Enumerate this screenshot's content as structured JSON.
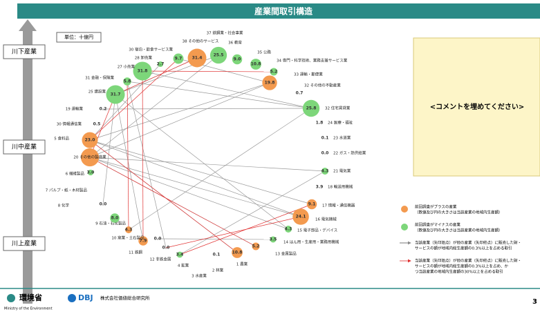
{
  "header": {
    "title": "産業間取引構造"
  },
  "unit": "単位：十億円",
  "side_labels": [
    "川下産業",
    "川中産業",
    "川上産業"
  ],
  "nodes": [
    {
      "label": "38 その他のサービス",
      "value": "25.5",
      "color": "#7dd67a"
    },
    {
      "label": "36 教育",
      "value": "9.0",
      "color": "#7dd67a"
    },
    {
      "label": "35 公務",
      "value": "10.8",
      "color": "#7dd67a"
    },
    {
      "label": "34 専門・科学技術、業務支援サービス業",
      "value": "5.2",
      "color": "#7dd67a"
    },
    {
      "label": "33 運輸・郵便業",
      "value": "19.8",
      "color": "#f39a4f"
    },
    {
      "label": "32 その他の不動産業",
      "value": "0.7"
    },
    {
      "label": "32 住宅賃貸業",
      "value": "25.8",
      "color": "#7dd67a"
    },
    {
      "label": "24 医療・福祉",
      "value": "1.8"
    },
    {
      "label": "23 水道業",
      "value": "0.1"
    },
    {
      "label": "22 ガス・熱供給業",
      "value": "0.0"
    },
    {
      "label": "21 電気業",
      "value": "4.3",
      "color": "#7dd67a"
    },
    {
      "label": "18 輸送用機械",
      "value": "3.9"
    },
    {
      "label": "17 情報・通信機器",
      "value": "9.1",
      "color": "#f39a4f"
    },
    {
      "label": "16 電気機械",
      "value": "24.1",
      "color": "#f39a4f"
    },
    {
      "label": "15 電子部品・デバイス",
      "value": "4.3",
      "color": "#7dd67a"
    },
    {
      "label": "14 はん用・生産用・業務用機械",
      "value": "3.5",
      "color": "#7dd67a"
    },
    {
      "label": "13 金属製品",
      "value": "5.2",
      "color": "#f39a4f"
    },
    {
      "label": "1 農業",
      "value": "10.8",
      "color": "#f39a4f"
    },
    {
      "label": "2 林業",
      "value": "0.1"
    },
    {
      "label": "3 水産業"
    },
    {
      "label": "4 鉱業",
      "value": "3.4",
      "color": "#7dd67a"
    },
    {
      "label": "12 非鉄金属",
      "value": "0.0"
    },
    {
      "label": "11 鉄鋼",
      "value": "0.0"
    },
    {
      "label": "10 窯業・土石製品",
      "value": "7.9",
      "color": "#f39a4f"
    },
    {
      "label": "9 石油・石炭製品",
      "value": "4.3",
      "color": "#f39a4f"
    },
    {
      "label": "8 化学",
      "value": "8.0",
      "color": "#7dd67a"
    },
    {
      "label": "7 パルプ・紙・木材製品",
      "value": "0.0"
    },
    {
      "label": "6 繊維製品",
      "value": "3.0",
      "color": "#7dd67a"
    },
    {
      "label": "20 その他の製造業",
      "color": "#f39a4f"
    },
    {
      "label": "5 食料品",
      "value": "23.0",
      "color": "#f39a4f"
    },
    {
      "label": "30 情報通信業",
      "value": "0.5"
    },
    {
      "label": "19 運輸業",
      "value": "0.2"
    },
    {
      "label": "25 建設業",
      "value": "31.7",
      "color": "#7dd67a"
    },
    {
      "label": "31 金融・保険業",
      "value": "5.8",
      "color": "#7dd67a"
    },
    {
      "label": "27 小売業",
      "value": "31.8",
      "color": "#7dd67a"
    },
    {
      "label": "28 卸売業",
      "value": "2.7",
      "color": "#7dd67a"
    },
    {
      "label": "30 宿泊・飲食サービス業",
      "value": "9.7",
      "color": "#7dd67a"
    },
    {
      "label": "37 鉄鋼業・社会事業",
      "value": "31.4",
      "color": "#f39a4f"
    }
  ],
  "comment": "<コメントを埋めてください>",
  "legend": [
    {
      "lines": [
        "前回調査がプラスの産業",
        "（数値及び円の大きさは当該産業の地域内生産額）"
      ],
      "color": "#f39a4f"
    },
    {
      "lines": [
        "前回調査がマイナスの産業",
        "（数値及び円の大きさは当該産業の地域内生産額）"
      ],
      "color": "#7dd67a"
    },
    {
      "lines": [
        "当該産業（矢印始点）が他の産業（矢印終点）に販売した財・",
        "サービスの額が地域内総生産額の0.3%以上を占める取引"
      ],
      "color": "#555555"
    },
    {
      "lines": [
        "当該産業（矢印始点）が他の産業（矢印終点）に販売した財・",
        "サービスの額が地域内総生産額の0.3%以上を占め、か",
        "つ当該産業の地域内生産額の30%以上を占める取引"
      ],
      "color": "#e03030"
    }
  ],
  "footer": {
    "ministry": "環境省",
    "ministry_en": "Ministry of the Environment",
    "dbj": "DBJ",
    "company": "株式会社価値総合研究所",
    "page": "3"
  }
}
